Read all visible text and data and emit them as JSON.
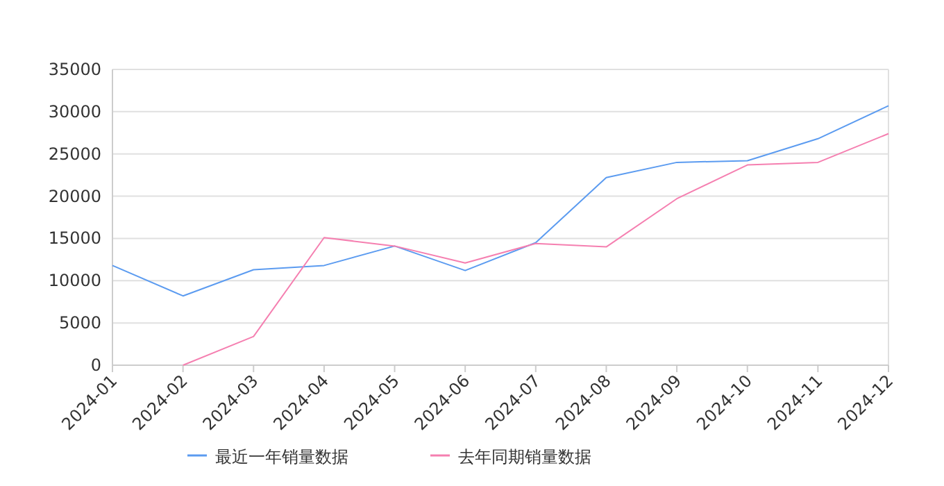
{
  "chart_data": {
    "type": "line",
    "categories": [
      "2024-01",
      "2024-02",
      "2024-03",
      "2024-04",
      "2024-05",
      "2024-06",
      "2024-07",
      "2024-08",
      "2024-09",
      "2024-10",
      "2024-11",
      "2024-12"
    ],
    "series": [
      {
        "name": "最近一年销量数据",
        "color": "#5b9bf0",
        "values": [
          11800,
          8200,
          11300,
          11800,
          14100,
          11200,
          14500,
          22200,
          24000,
          24200,
          26800,
          30700
        ]
      },
      {
        "name": "去年同期销量数据",
        "color": "#f57fb0",
        "values": [
          null,
          0,
          3400,
          15100,
          14100,
          12100,
          14400,
          14000,
          19700,
          23700,
          24000,
          27400
        ]
      }
    ],
    "ylim": [
      0,
      35000
    ],
    "yticks": [
      0,
      5000,
      10000,
      15000,
      20000,
      25000,
      30000,
      35000
    ],
    "grid": "y",
    "legend": "bottom"
  }
}
